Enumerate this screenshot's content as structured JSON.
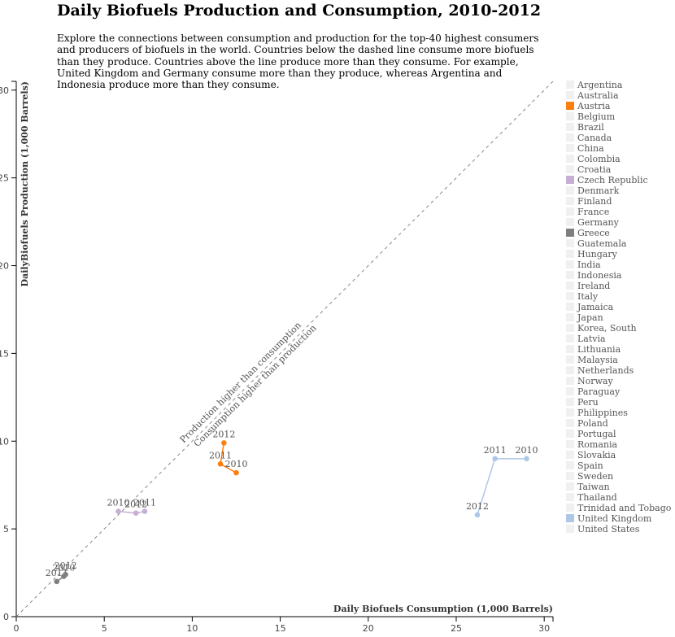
{
  "page": {
    "title": "Daily Biofuels Production and Consumption, 2010-2012",
    "intro": "Explore the connections between consumption and production for the top-40 highest consumers and producers of biofuels in the world. Countries below the dashed line consume more biofuels than they produce. Countries above the line produce more than they consume. For example, United Kingdom and Germany consume more than they produce, whereas Argentina and Indonesia produce more than they consume."
  },
  "chart_data": {
    "type": "scatter",
    "xlabel": "Daily Biofuels Consumption (1,000 Barrels)",
    "ylabel": "DailyBiofuels Production (1,000 Barrels)",
    "xlim": [
      0,
      30.5
    ],
    "ylim": [
      0,
      30.5
    ],
    "x_ticks": [
      0,
      5,
      10,
      15,
      20,
      25,
      30
    ],
    "y_ticks": [
      0,
      5,
      10,
      15,
      20,
      25,
      30
    ],
    "grid": false,
    "legend_position": "right",
    "diagonal": {
      "label_above": "Production higher than consumption",
      "label_below": "Consumption higher than production"
    },
    "legend": [
      "Argentina",
      "Australia",
      "Austria",
      "Belgium",
      "Brazil",
      "Canada",
      "China",
      "Colombia",
      "Croatia",
      "Czech Republic",
      "Denmark",
      "Finland",
      "France",
      "Germany",
      "Greece",
      "Guatemala",
      "Hungary",
      "India",
      "Indonesia",
      "Ireland",
      "Italy",
      "Jamaica",
      "Japan",
      "Korea, South",
      "Latvia",
      "Lithuania",
      "Malaysia",
      "Netherlands",
      "Norway",
      "Paraguay",
      "Peru",
      "Philippines",
      "Poland",
      "Portugal",
      "Romania",
      "Slovakia",
      "Spain",
      "Sweden",
      "Taiwan",
      "Thailand",
      "Trinidad and Tobago",
      "United Kingdom",
      "United States"
    ],
    "inactive_color": "#f0f0f0",
    "series": [
      {
        "name": "Austria",
        "color": "#ff7f0e",
        "points": [
          {
            "year": "2010",
            "x": 12.5,
            "y": 8.2
          },
          {
            "year": "2011",
            "x": 11.6,
            "y": 8.7
          },
          {
            "year": "2012",
            "x": 11.8,
            "y": 9.9
          }
        ]
      },
      {
        "name": "Czech Republic",
        "color": "#c5b0d5",
        "points": [
          {
            "year": "2010",
            "x": 5.8,
            "y": 6.0
          },
          {
            "year": "2012",
            "x": 6.8,
            "y": 5.9
          },
          {
            "year": "2011",
            "x": 7.3,
            "y": 6.0
          }
        ]
      },
      {
        "name": "Greece",
        "color": "#7f7f7f",
        "points": [
          {
            "year": "2011",
            "x": 2.3,
            "y": 2.0
          },
          {
            "year": "2010",
            "x": 2.7,
            "y": 2.3
          },
          {
            "year": "2012",
            "x": 2.8,
            "y": 2.4
          }
        ]
      },
      {
        "name": "United Kingdom",
        "color": "#aec7e8",
        "points": [
          {
            "year": "2010",
            "x": 29.0,
            "y": 9.0
          },
          {
            "year": "2011",
            "x": 27.2,
            "y": 9.0
          },
          {
            "year": "2012",
            "x": 26.2,
            "y": 5.8
          }
        ]
      }
    ]
  }
}
